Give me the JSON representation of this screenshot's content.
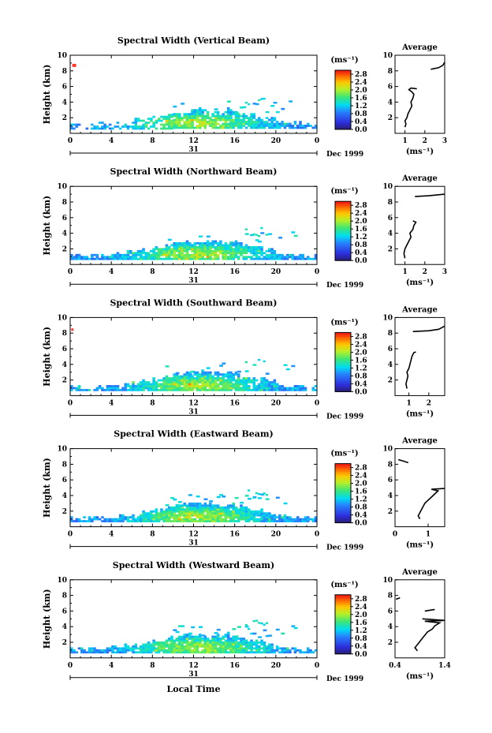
{
  "chart_data": [
    {
      "type": "heatmap",
      "title": "Spectral Width (Vertical Beam)",
      "ylabel": "Height (km)",
      "xlim": [
        0,
        24
      ],
      "ylim": [
        0,
        10
      ],
      "xticks": [
        "0",
        "4",
        "8",
        "12",
        "16",
        "20",
        "0"
      ],
      "yticks": [
        "2",
        "4",
        "6",
        "8",
        "10"
      ],
      "day_label": "31",
      "date_label": "Dec 1999",
      "colorbar": {
        "unit": "(ms⁻¹)",
        "ticks": [
          "0.0",
          "0.4",
          "0.8",
          "1.2",
          "1.6",
          "2.0",
          "2.4",
          "2.8"
        ],
        "range": [
          0,
          3.0
        ]
      },
      "profile": {
        "title": "Average",
        "xlabel": "(ms⁻¹)",
        "xlim": [
          0.5,
          3
        ],
        "xticks": [
          "1",
          "2",
          "3"
        ],
        "xtick_values": [
          1,
          2,
          3
        ],
        "segments": [
          [
            [
              1.0,
              0.8
            ],
            [
              1.05,
              1.2
            ],
            [
              1.0,
              1.6
            ],
            [
              1.1,
              2.0
            ],
            [
              1.15,
              2.5
            ],
            [
              1.25,
              3.0
            ],
            [
              1.35,
              3.5
            ],
            [
              1.3,
              4.0
            ],
            [
              1.4,
              4.5
            ],
            [
              1.45,
              5.0
            ],
            [
              1.35,
              5.3
            ],
            [
              1.2,
              5.6
            ],
            [
              1.3,
              5.8
            ],
            [
              1.6,
              5.7
            ]
          ],
          [
            [
              2.3,
              8.2
            ],
            [
              2.7,
              8.4
            ],
            [
              2.9,
              8.7
            ],
            [
              3.0,
              9.1
            ]
          ]
        ]
      }
    },
    {
      "type": "heatmap",
      "title": "Spectral Width (Northward Beam)",
      "ylabel": "Height (km)",
      "xlim": [
        0,
        24
      ],
      "ylim": [
        0,
        10
      ],
      "xticks": [
        "0",
        "4",
        "8",
        "12",
        "16",
        "20",
        "0"
      ],
      "yticks": [
        "2",
        "4",
        "6",
        "8",
        "10"
      ],
      "day_label": "31",
      "date_label": "Dec 1999",
      "colorbar": {
        "unit": "(ms⁻¹)",
        "ticks": [
          "0.0",
          "0.4",
          "0.8",
          "1.2",
          "1.6",
          "2.0",
          "2.4",
          "2.8"
        ],
        "range": [
          0,
          3.0
        ]
      },
      "profile": {
        "title": "Average",
        "xlabel": "(ms⁻¹)",
        "xlim": [
          0.5,
          3
        ],
        "xticks": [
          "1",
          "2",
          "3"
        ],
        "xtick_values": [
          1,
          2,
          3
        ],
        "segments": [
          [
            [
              1.0,
              0.8
            ],
            [
              0.95,
              1.4
            ],
            [
              1.0,
              2.0
            ],
            [
              1.1,
              2.5
            ],
            [
              1.2,
              3.0
            ],
            [
              1.3,
              3.5
            ],
            [
              1.25,
              4.0
            ],
            [
              1.4,
              4.5
            ],
            [
              1.45,
              5.0
            ],
            [
              1.55,
              5.4
            ],
            [
              1.4,
              5.6
            ]
          ],
          [
            [
              1.5,
              8.7
            ],
            [
              2.2,
              8.8
            ],
            [
              3.0,
              9.0
            ]
          ]
        ]
      }
    },
    {
      "type": "heatmap",
      "title": "Spectral Width (Southward Beam)",
      "ylabel": "Height (km)",
      "xlim": [
        0,
        24
      ],
      "ylim": [
        0,
        10
      ],
      "xticks": [
        "0",
        "4",
        "8",
        "12",
        "16",
        "20",
        "0"
      ],
      "yticks": [
        "2",
        "4",
        "6",
        "8",
        "10"
      ],
      "day_label": "31",
      "date_label": "Dec 1999",
      "colorbar": {
        "unit": "(ms⁻¹)",
        "ticks": [
          "0.0",
          "0.4",
          "0.8",
          "1.2",
          "1.6",
          "2.0",
          "2.4",
          "2.8"
        ],
        "range": [
          0,
          3.0
        ]
      },
      "profile": {
        "title": "Average",
        "xlabel": "(ms⁻¹)",
        "xlim": [
          0.3,
          2.8
        ],
        "xticks": [
          "1",
          "2"
        ],
        "xtick_values": [
          1,
          2
        ],
        "segments": [
          [
            [
              0.9,
              0.9
            ],
            [
              0.85,
              1.5
            ],
            [
              0.9,
              2.0
            ],
            [
              0.95,
              2.5
            ],
            [
              0.9,
              3.0
            ],
            [
              1.0,
              3.5
            ],
            [
              1.05,
              4.0
            ],
            [
              1.1,
              4.5
            ],
            [
              1.15,
              5.0
            ],
            [
              1.25,
              5.5
            ],
            [
              1.35,
              5.6
            ]
          ],
          [
            [
              1.2,
              8.2
            ],
            [
              2.0,
              8.3
            ],
            [
              2.5,
              8.5
            ],
            [
              2.8,
              8.9
            ]
          ]
        ]
      }
    },
    {
      "type": "heatmap",
      "title": "Spectral Width (Eastward Beam)",
      "ylabel": "Height (km)",
      "xlim": [
        0,
        24
      ],
      "ylim": [
        0,
        10
      ],
      "xticks": [
        "0",
        "4",
        "8",
        "12",
        "16",
        "20",
        "0"
      ],
      "yticks": [
        "2",
        "4",
        "6",
        "8",
        "10"
      ],
      "day_label": "31",
      "date_label": "Dec 1999",
      "colorbar": {
        "unit": "(ms⁻¹)",
        "ticks": [
          "0.0",
          "0.4",
          "0.8",
          "1.2",
          "1.6",
          "2.0",
          "2.4",
          "2.8"
        ],
        "range": [
          0,
          3.0
        ]
      },
      "profile": {
        "title": "Average",
        "xlabel": "(ms⁻¹)",
        "xlim": [
          0,
          1.5
        ],
        "xticks": [
          "0",
          "1"
        ],
        "xtick_values": [
          0,
          1
        ],
        "segments": [
          [
            [
              0.75,
              1.0
            ],
            [
              0.7,
              1.4
            ],
            [
              0.75,
              1.8
            ],
            [
              0.8,
              2.2
            ],
            [
              0.85,
              2.6
            ],
            [
              0.9,
              3.0
            ],
            [
              1.0,
              3.4
            ],
            [
              1.1,
              3.8
            ],
            [
              1.2,
              4.2
            ],
            [
              1.3,
              4.6
            ],
            [
              1.1,
              4.8
            ],
            [
              1.5,
              4.9
            ]
          ],
          [
            [
              0.1,
              8.6
            ],
            [
              0.25,
              8.4
            ],
            [
              0.4,
              8.2
            ]
          ]
        ]
      }
    },
    {
      "type": "heatmap",
      "title": "Spectral Width (Westward Beam)",
      "ylabel": "Height (km)",
      "xlabel": "Local Time",
      "xlim": [
        0,
        24
      ],
      "ylim": [
        0,
        10
      ],
      "xticks": [
        "0",
        "4",
        "8",
        "12",
        "16",
        "20",
        "0"
      ],
      "yticks": [
        "2",
        "4",
        "6",
        "8",
        "10"
      ],
      "day_label": "31",
      "date_label": "Dec 1999",
      "colorbar": {
        "unit": "(ms⁻¹)",
        "ticks": [
          "0.0",
          "0.4",
          "0.8",
          "1.2",
          "1.6",
          "2.0",
          "2.4",
          "2.8"
        ],
        "range": [
          0,
          3.0
        ]
      },
      "profile": {
        "title": "Average",
        "xlabel": "(ms⁻¹)",
        "xlim": [
          0.4,
          1.4
        ],
        "xticks": [
          "0.4",
          "1.4"
        ],
        "xtick_values": [
          0.4,
          1.4
        ],
        "segments": [
          [
            [
              0.85,
              0.9
            ],
            [
              0.8,
              1.3
            ],
            [
              0.85,
              1.7
            ],
            [
              0.9,
              2.1
            ],
            [
              0.95,
              2.5
            ],
            [
              1.0,
              2.9
            ],
            [
              1.05,
              3.3
            ],
            [
              1.15,
              3.7
            ],
            [
              1.2,
              4.1
            ],
            [
              1.3,
              4.5
            ],
            [
              1.0,
              4.7
            ],
            [
              1.4,
              4.8
            ],
            [
              0.95,
              5.0
            ]
          ],
          [
            [
              1.0,
              6.0
            ],
            [
              1.2,
              6.2
            ]
          ],
          [
            [
              0.42,
              7.5
            ],
            [
              0.5,
              7.7
            ]
          ]
        ]
      }
    }
  ]
}
